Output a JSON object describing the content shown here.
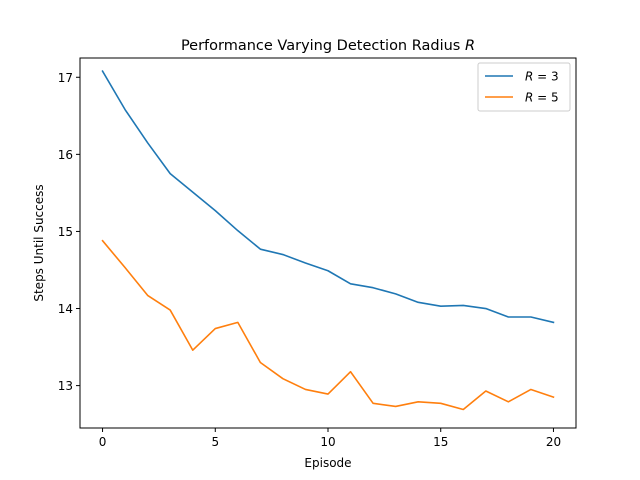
{
  "chart_data": {
    "type": "line",
    "title": "Performance Varying Detection Radius R",
    "title_parts": {
      "prefix": "Performance Varying Detection Radius ",
      "variable": "R"
    },
    "xlabel": "Episode",
    "ylabel": "Steps Until Success",
    "xlim": [
      -1,
      21
    ],
    "ylim": [
      12.45,
      17.25
    ],
    "xticks": [
      0,
      5,
      10,
      15,
      20
    ],
    "yticks": [
      13,
      14,
      15,
      16,
      17
    ],
    "grid": false,
    "legend_position": "top-right",
    "x": [
      0,
      1,
      2,
      3,
      4,
      5,
      6,
      7,
      8,
      9,
      10,
      11,
      12,
      13,
      14,
      15,
      16,
      17,
      18,
      19,
      20
    ],
    "series": [
      {
        "name": "R = 3",
        "name_parts": {
          "variable": "R",
          "rest": " = 3"
        },
        "color": "#1f77b4",
        "values": [
          17.08,
          16.58,
          16.15,
          15.75,
          15.51,
          15.27,
          15.01,
          14.77,
          14.7,
          14.59,
          14.49,
          14.32,
          14.27,
          14.19,
          14.08,
          14.03,
          14.04,
          14.0,
          13.89,
          13.89,
          13.82
        ]
      },
      {
        "name": "R = 5",
        "name_parts": {
          "variable": "R",
          "rest": " = 5"
        },
        "color": "#ff7f0e",
        "values": [
          14.88,
          14.53,
          14.17,
          13.98,
          13.46,
          13.74,
          13.82,
          13.3,
          13.09,
          12.95,
          12.89,
          13.18,
          12.77,
          12.73,
          12.79,
          12.77,
          12.69,
          12.93,
          12.79,
          12.95,
          12.85
        ]
      }
    ]
  }
}
